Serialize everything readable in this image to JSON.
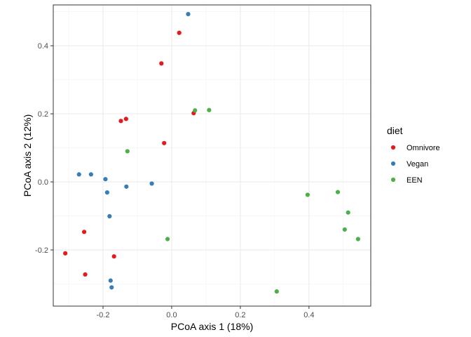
{
  "chart_data": {
    "type": "scatter",
    "title": "",
    "xlabel": "PCoA axis 1 (18%)",
    "ylabel": "PCoA axis 2 (12%)",
    "xlim": [
      -0.345,
      0.58
    ],
    "ylim": [
      -0.365,
      0.52
    ],
    "x_ticks": [
      -0.2,
      0.0,
      0.2,
      0.4
    ],
    "x_tick_labels": [
      "-0.2",
      "0.0",
      "0.2",
      "0.4"
    ],
    "y_ticks": [
      -0.2,
      0.0,
      0.2,
      0.4
    ],
    "y_tick_labels": [
      "-0.2",
      "0.0",
      "0.2",
      "0.4"
    ],
    "grid": true,
    "legend": {
      "title": "diet",
      "placement": "right"
    },
    "series": [
      {
        "name": "Omnivore",
        "color": "#E41A1C",
        "points": [
          [
            0.022,
            0.438
          ],
          [
            -0.03,
            0.348
          ],
          [
            -0.133,
            0.185
          ],
          [
            -0.148,
            0.179
          ],
          [
            0.064,
            0.202
          ],
          [
            -0.022,
            0.114
          ],
          [
            -0.255,
            -0.147
          ],
          [
            -0.31,
            -0.21
          ],
          [
            -0.168,
            -0.219
          ],
          [
            -0.252,
            -0.272
          ]
        ]
      },
      {
        "name": "Vegan",
        "color": "#377EB8",
        "points": [
          [
            0.048,
            0.493
          ],
          [
            -0.27,
            0.022
          ],
          [
            -0.235,
            0.022
          ],
          [
            -0.193,
            0.008
          ],
          [
            -0.132,
            -0.014
          ],
          [
            -0.058,
            -0.005
          ],
          [
            -0.188,
            -0.031
          ],
          [
            -0.181,
            -0.101
          ],
          [
            -0.178,
            -0.29
          ],
          [
            -0.175,
            -0.31
          ]
        ]
      },
      {
        "name": "EEN",
        "color": "#4DAF4A",
        "points": [
          [
            0.068,
            0.21
          ],
          [
            0.109,
            0.211
          ],
          [
            -0.129,
            0.09
          ],
          [
            -0.012,
            -0.168
          ],
          [
            0.306,
            -0.322
          ],
          [
            0.396,
            -0.038
          ],
          [
            0.484,
            -0.03
          ],
          [
            0.514,
            -0.09
          ],
          [
            0.504,
            -0.14
          ],
          [
            0.543,
            -0.168
          ]
        ]
      }
    ]
  }
}
